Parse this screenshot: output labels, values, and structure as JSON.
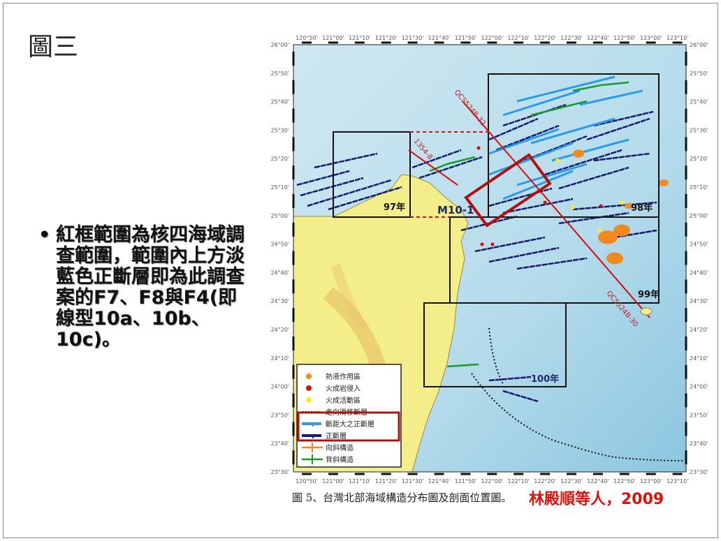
{
  "slide": {
    "title": "圖三",
    "bullet_text": "紅框範圍為核四海域調查範圍，範圍內上方淡藍色正斷層即為此調查案的F7、F8與F4(即線型10a、10b、10c)。",
    "bullet_symbol": "•"
  },
  "map": {
    "top_axis_labels": [
      "120°50'",
      "121°00'",
      "121°10'",
      "121°20'",
      "121°30'",
      "121°40'",
      "121°50'",
      "122°00'",
      "122°10'",
      "122°20'",
      "122°30'",
      "122°40'",
      "122°50'",
      "123°00'",
      "123°10'"
    ],
    "side_axis_labels": [
      "26°00'",
      "25°50'",
      "25°40'",
      "25°30'",
      "25°20'",
      "25°10'",
      "25°00'",
      "24°50'",
      "24°40'",
      "24°30'",
      "24°20'",
      "24°10'",
      "24°00'",
      "23°50'",
      "23°40'",
      "23°30'"
    ],
    "survey_boxes": [
      "97年",
      "98年",
      "99年",
      "100年"
    ],
    "labels": {
      "m10": "M10-1",
      "line_1354": "1354-8",
      "qcs32": "QCS524B-32",
      "qcs30": "QCS524B-30"
    },
    "legend": [
      {
        "label": "熱液作用區",
        "color": "#f08a1e"
      },
      {
        "label": "火成岩侵入",
        "color": "#d01010"
      },
      {
        "label": "火成活動區",
        "color": "#f7ea2a"
      },
      {
        "label": "走向滑移斷層",
        "color": "#222222"
      },
      {
        "label": "斷距大之正斷層",
        "color": "#2a9be8"
      },
      {
        "label": "正斷層",
        "color": "#141a6e"
      },
      {
        "label": "向斜構造",
        "color": "#f08a1e"
      },
      {
        "label": "背斜構造",
        "color": "#1a9a2a"
      }
    ],
    "colors": {
      "sea": "#bfe0ee",
      "land": "#f3ee8a",
      "highlight": "#b01010"
    }
  },
  "caption": "圖 5、台灣北部海域構造分布圖及剖面位置圖。",
  "credit": "林殿順等人，2009"
}
